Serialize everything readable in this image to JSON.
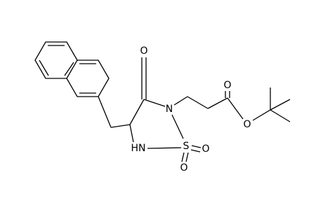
{
  "atoms": [
    {
      "label": "O"
    },
    {
      "label": "N"
    },
    {
      "label": "S"
    },
    {
      "label": "HN"
    },
    {
      "label": "O"
    },
    {
      "label": "O"
    },
    {
      "label": "O"
    },
    {
      "label": "O"
    }
  ]
}
